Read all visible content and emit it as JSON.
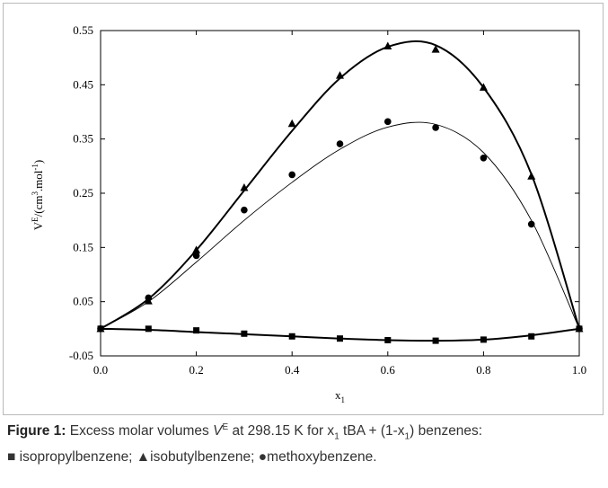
{
  "chart_data": {
    "type": "scatter",
    "xlabel_main": "x",
    "xlabel_sub": "1",
    "ylabel_parts": [
      "V",
      "E",
      "/(cm",
      "3",
      ".mol",
      "-1",
      ")"
    ],
    "xlim": [
      0,
      1
    ],
    "ylim": [
      -0.05,
      0.55
    ],
    "x_ticks": [
      0.0,
      0.2,
      0.4,
      0.6,
      0.8,
      1.0
    ],
    "x_tick_labels": [
      "0.0",
      "0.2",
      "0.4",
      "0.6",
      "0.8",
      "1.0"
    ],
    "y_ticks": [
      -0.05,
      0.05,
      0.15,
      0.25,
      0.35,
      0.45,
      0.55
    ],
    "y_tick_labels": [
      "-0.05",
      "0.05",
      "0.15",
      "0.25",
      "0.35",
      "0.45",
      "0.55"
    ],
    "grid": false,
    "series": [
      {
        "name": "isopropylbenzene",
        "marker": "square",
        "x": [
          0.0,
          0.1,
          0.2,
          0.3,
          0.4,
          0.5,
          0.6,
          0.7,
          0.8,
          0.9,
          1.0
        ],
        "y": [
          0.0,
          0.0,
          -0.003,
          -0.009,
          -0.014,
          -0.018,
          -0.021,
          -0.022,
          -0.02,
          -0.014,
          0.0
        ],
        "fit": [
          0.0,
          -0.002,
          -0.006,
          -0.01,
          -0.014,
          -0.018,
          -0.021,
          -0.022,
          -0.02,
          -0.012,
          0.0
        ]
      },
      {
        "name": "isobutylbenzene",
        "marker": "triangle",
        "x": [
          0.0,
          0.1,
          0.2,
          0.3,
          0.4,
          0.5,
          0.6,
          0.7,
          0.8,
          0.9,
          1.0
        ],
        "y": [
          0.0,
          0.051,
          0.145,
          0.26,
          0.378,
          0.467,
          0.521,
          0.515,
          0.445,
          0.281,
          0.0
        ],
        "fit": [
          0.0,
          0.055,
          0.145,
          0.255,
          0.365,
          0.462,
          0.52,
          0.523,
          0.445,
          0.285,
          0.0
        ]
      },
      {
        "name": "methoxybenzene",
        "marker": "circle",
        "x": [
          0.0,
          0.1,
          0.2,
          0.3,
          0.4,
          0.5,
          0.6,
          0.7,
          0.8,
          0.9,
          1.0
        ],
        "y": [
          0.0,
          0.057,
          0.135,
          0.219,
          0.284,
          0.341,
          0.382,
          0.371,
          0.315,
          0.193,
          0.0
        ],
        "fit": [
          0.0,
          0.05,
          0.123,
          0.2,
          0.27,
          0.331,
          0.372,
          0.377,
          0.325,
          0.2,
          0.0
        ]
      }
    ]
  },
  "caption": {
    "label": "Figure 1:",
    "text_1": " Excess molar volumes ",
    "v": "V",
    "v_sup": "E",
    "text_2": " at 298.15 K for x",
    "sub_1": "1",
    "text_3": " tBA + (1-x",
    "sub_2": "1",
    "text_4": ") benzenes:",
    "line2_sq": "■",
    "line2_a": " isopropylbenzene; ",
    "line2_tri": "▲",
    "line2_b": "isobutylbenzene; ",
    "line2_dot": "●",
    "line2_c": "methoxybenzene."
  },
  "colors": {
    "line": "#000000",
    "frame": "#b9b9b9",
    "caption": "#333333"
  }
}
